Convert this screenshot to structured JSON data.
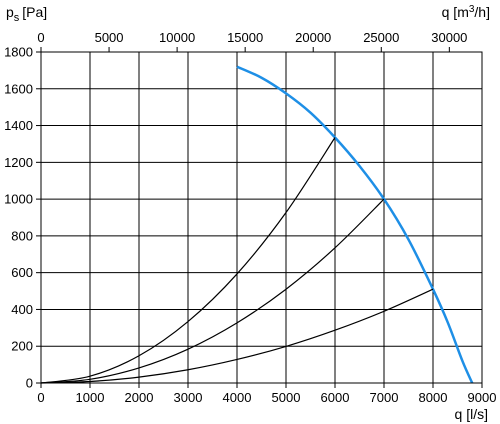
{
  "chart_data": {
    "type": "line",
    "title": "",
    "ylabel": "p",
    "ylabel_sub": "s",
    "ylabel_unit": "[Pa]",
    "xlabel": "q [l/s]",
    "top_xlabel_prefix": "q [m",
    "top_xlabel_sup": "3",
    "top_xlabel_suffix": "/h]",
    "xlim": [
      0,
      9000
    ],
    "ylim": [
      0,
      1800
    ],
    "top_xlim": [
      0,
      32400
    ],
    "grid": true,
    "x_ticks": [
      "0",
      "1000",
      "2000",
      "3000",
      "4000",
      "5000",
      "6000",
      "7000",
      "8000",
      "9000"
    ],
    "y_ticks": [
      "0",
      "200",
      "400",
      "600",
      "800",
      "1000",
      "1200",
      "1400",
      "1600",
      "1800"
    ],
    "top_ticks": [
      "0",
      "5000",
      "10000",
      "15000",
      "20000",
      "25000",
      "30000"
    ],
    "series": [
      {
        "color": "#1e8fe6",
        "x": [
          4000,
          4500,
          5000,
          5500,
          6000,
          6500,
          7000,
          7500,
          8000,
          8300,
          8600,
          8800
        ],
        "y": [
          1720,
          1660,
          1575,
          1470,
          1335,
          1180,
          1000,
          780,
          510,
          330,
          120,
          0
        ]
      },
      {
        "color": "#000000",
        "x": [
          0,
          1000,
          2000,
          3000,
          4000,
          5000,
          6000
        ],
        "y": [
          0,
          37,
          148,
          334,
          593,
          927,
          1335
        ]
      },
      {
        "color": "#000000",
        "x": [
          0,
          1000,
          2000,
          3000,
          4000,
          5000,
          6000,
          7000
        ],
        "y": [
          0,
          20,
          82,
          184,
          327,
          510,
          735,
          1000
        ]
      },
      {
        "color": "#000000",
        "x": [
          0,
          1000,
          2000,
          3000,
          4000,
          5000,
          6000,
          7000,
          8000
        ],
        "y": [
          0,
          8,
          32,
          72,
          128,
          199,
          287,
          390,
          510
        ]
      }
    ]
  }
}
